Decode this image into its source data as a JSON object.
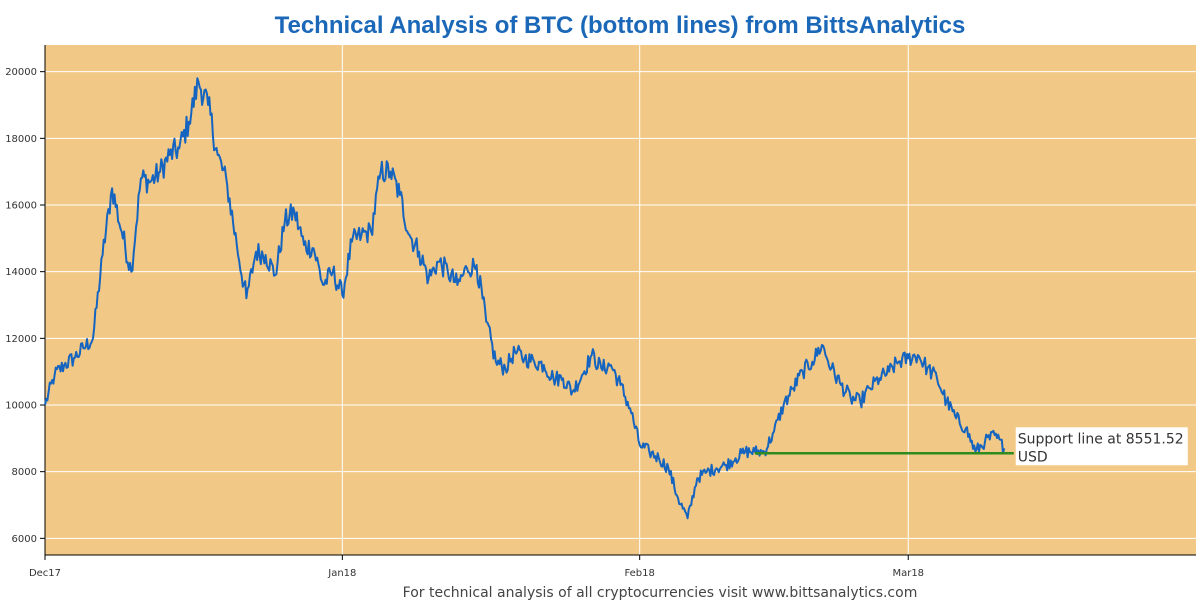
{
  "page": {
    "footer": "For technical analysis of all cryptocurrencies visit www.bittsanalytics.com"
  },
  "colors": {
    "plot_background": "#f2c886",
    "price_line": "#1565c0",
    "support_line": "#2e8b1f",
    "title": "#1b68b8",
    "grid": "#ffffff"
  },
  "chart_data": {
    "type": "line",
    "title": "Technical Analysis of BTC (bottom lines) from BittsAnalytics",
    "xlabel": "",
    "ylabel": "",
    "x_range": [
      "2017-12-01",
      "2018-03-31"
    ],
    "ylim": [
      5500,
      20800
    ],
    "y_ticks": [
      6000,
      8000,
      10000,
      12000,
      14000,
      16000,
      18000,
      20000
    ],
    "x_ticks": [
      {
        "date": "2017-12-01",
        "label": "Dec17"
      },
      {
        "date": "2018-01-01",
        "label": "Jan18"
      },
      {
        "date": "2018-02-01",
        "label": "Feb18"
      },
      {
        "date": "2018-03-01",
        "label": "Mar18"
      }
    ],
    "grid": true,
    "series": [
      {
        "color": "#1565c0",
        "x": [
          "2017-12-01",
          "2017-12-02",
          "2017-12-03",
          "2017-12-04",
          "2017-12-05",
          "2017-12-06",
          "2017-12-07",
          "2017-12-08",
          "2017-12-09",
          "2017-12-10",
          "2017-12-11",
          "2017-12-12",
          "2017-12-13",
          "2017-12-14",
          "2017-12-15",
          "2017-12-16",
          "2017-12-17",
          "2017-12-18",
          "2017-12-19",
          "2017-12-20",
          "2017-12-21",
          "2017-12-22",
          "2017-12-23",
          "2017-12-24",
          "2017-12-25",
          "2017-12-26",
          "2017-12-27",
          "2017-12-28",
          "2017-12-29",
          "2017-12-30",
          "2017-12-31",
          "2018-01-01",
          "2018-01-02",
          "2018-01-03",
          "2018-01-04",
          "2018-01-05",
          "2018-01-06",
          "2018-01-07",
          "2018-01-08",
          "2018-01-09",
          "2018-01-10",
          "2018-01-11",
          "2018-01-12",
          "2018-01-13",
          "2018-01-14",
          "2018-01-15",
          "2018-01-16",
          "2018-01-17",
          "2018-01-18",
          "2018-01-19",
          "2018-01-20",
          "2018-01-21",
          "2018-01-22",
          "2018-01-23",
          "2018-01-24",
          "2018-01-25",
          "2018-01-26",
          "2018-01-27",
          "2018-01-28",
          "2018-01-29",
          "2018-01-30",
          "2018-01-31",
          "2018-02-01",
          "2018-02-02",
          "2018-02-03",
          "2018-02-04",
          "2018-02-05",
          "2018-02-06",
          "2018-02-07",
          "2018-02-08",
          "2018-02-09",
          "2018-02-10",
          "2018-02-11",
          "2018-02-12",
          "2018-02-13",
          "2018-02-14",
          "2018-02-15",
          "2018-02-16",
          "2018-02-17",
          "2018-02-18",
          "2018-02-19",
          "2018-02-20",
          "2018-02-21",
          "2018-02-22",
          "2018-02-23",
          "2018-02-24",
          "2018-02-25",
          "2018-02-26",
          "2018-02-27",
          "2018-02-28",
          "2018-03-01",
          "2018-03-02",
          "2018-03-03",
          "2018-03-04",
          "2018-03-05",
          "2018-03-06",
          "2018-03-07",
          "2018-03-08",
          "2018-03-09",
          "2018-03-10",
          "2018-03-11"
        ],
        "values": [
          10000,
          10900,
          11200,
          11400,
          11700,
          12000,
          14500,
          16500,
          15200,
          14000,
          16800,
          16700,
          17000,
          17500,
          17700,
          18500,
          19700,
          19000,
          17500,
          16600,
          14800,
          13200,
          14600,
          14500,
          13900,
          15500,
          15800,
          14800,
          14700,
          13600,
          14000,
          13300,
          14900,
          15100,
          15200,
          17000,
          17000,
          16300,
          15100,
          14600,
          13800,
          14300,
          14000,
          13600,
          14100,
          14200,
          12500,
          11300,
          11100,
          11600,
          11400,
          11300,
          11200,
          10800,
          10800,
          10400,
          10900,
          11500,
          11100,
          11200,
          10600,
          9900,
          8800,
          8600,
          8400,
          8100,
          7200,
          6600,
          7800,
          8000,
          8100,
          8200,
          8400,
          8600,
          8600,
          8600,
          9200,
          10000,
          10500,
          11000,
          11300,
          11800,
          11100,
          10600,
          10200,
          10100,
          10500,
          10800,
          11000,
          11300,
          11400,
          11500,
          11100,
          10800,
          10100,
          9600,
          9300,
          8600,
          8900,
          9100,
          8700
        ]
      },
      {
        "color": "#2e8b1f",
        "x": [
          "2018-02-13",
          "2018-03-12"
        ],
        "values": [
          8551.52,
          8551.52
        ]
      }
    ],
    "annotations": [
      {
        "text": "Support line at 8551.52",
        "x": "2018-03-12",
        "y": 8551.52
      },
      {
        "text": "USD",
        "x": "2018-03-12",
        "y": 8551.52
      }
    ]
  }
}
